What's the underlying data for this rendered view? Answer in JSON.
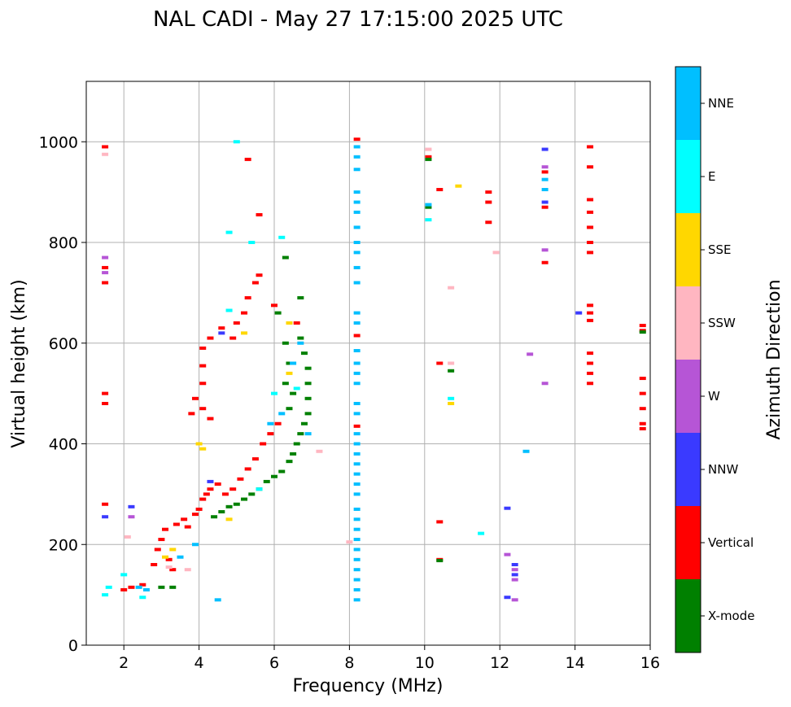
{
  "chart_data": {
    "type": "scatter",
    "title": "NAL CADI - May 27 17:15:00 2025 UTC",
    "xlabel": "Frequency (MHz)",
    "ylabel": "Virtual height (km)",
    "xlim": [
      1,
      16
    ],
    "ylim": [
      0,
      1120
    ],
    "xticks": [
      2,
      4,
      6,
      8,
      10,
      12,
      14,
      16
    ],
    "yticks": [
      0,
      200,
      400,
      600,
      800,
      1000
    ],
    "grid": true,
    "colorbar": {
      "title": "Azimuth Direction",
      "categories": [
        {
          "name": "X-mode",
          "color": "#008000"
        },
        {
          "name": "Vertical",
          "color": "#ff0000"
        },
        {
          "name": "NNW",
          "color": "#3a3aff"
        },
        {
          "name": "W",
          "color": "#b655d6"
        },
        {
          "name": "SSW",
          "color": "#ffb6c1"
        },
        {
          "name": "SSE",
          "color": "#ffd700"
        },
        {
          "name": "E",
          "color": "#00ffff"
        },
        {
          "name": "NNE",
          "color": "#00bfff"
        }
      ]
    },
    "series": [
      {
        "name": "Vertical",
        "color": "#ff0000",
        "points": [
          [
            1.5,
            990
          ],
          [
            1.5,
            750
          ],
          [
            1.5,
            720
          ],
          [
            1.5,
            500
          ],
          [
            1.5,
            480
          ],
          [
            1.5,
            280
          ],
          [
            2.0,
            110
          ],
          [
            2.2,
            115
          ],
          [
            2.5,
            120
          ],
          [
            2.8,
            160
          ],
          [
            2.9,
            190
          ],
          [
            3.0,
            210
          ],
          [
            3.1,
            230
          ],
          [
            3.2,
            170
          ],
          [
            3.3,
            150
          ],
          [
            3.4,
            240
          ],
          [
            3.6,
            250
          ],
          [
            3.7,
            235
          ],
          [
            3.9,
            260
          ],
          [
            4.0,
            270
          ],
          [
            4.1,
            290
          ],
          [
            4.2,
            300
          ],
          [
            4.3,
            310
          ],
          [
            4.5,
            320
          ],
          [
            4.7,
            300
          ],
          [
            4.9,
            310
          ],
          [
            5.1,
            330
          ],
          [
            5.3,
            350
          ],
          [
            5.5,
            370
          ],
          [
            5.7,
            400
          ],
          [
            5.9,
            420
          ],
          [
            6.1,
            440
          ],
          [
            3.8,
            460
          ],
          [
            3.9,
            490
          ],
          [
            4.1,
            470
          ],
          [
            4.3,
            450
          ],
          [
            4.1,
            520
          ],
          [
            4.1,
            555
          ],
          [
            4.1,
            590
          ],
          [
            4.3,
            610
          ],
          [
            4.6,
            630
          ],
          [
            4.9,
            610
          ],
          [
            5.0,
            640
          ],
          [
            5.2,
            660
          ],
          [
            5.3,
            690
          ],
          [
            5.5,
            720
          ],
          [
            5.6,
            735
          ],
          [
            6.0,
            675
          ],
          [
            6.6,
            640
          ],
          [
            5.3,
            965
          ],
          [
            5.6,
            855
          ],
          [
            8.2,
            1005
          ],
          [
            8.2,
            615
          ],
          [
            8.2,
            435
          ],
          [
            10.1,
            970
          ],
          [
            10.4,
            905
          ],
          [
            10.4,
            560
          ],
          [
            10.4,
            245
          ],
          [
            10.4,
            170
          ],
          [
            11.7,
            900
          ],
          [
            11.7,
            880
          ],
          [
            11.7,
            840
          ],
          [
            13.2,
            940
          ],
          [
            13.2,
            870
          ],
          [
            13.2,
            760
          ],
          [
            14.4,
            990
          ],
          [
            14.4,
            950
          ],
          [
            14.4,
            885
          ],
          [
            14.4,
            860
          ],
          [
            14.4,
            830
          ],
          [
            14.4,
            800
          ],
          [
            14.4,
            780
          ],
          [
            14.4,
            675
          ],
          [
            14.4,
            660
          ],
          [
            14.4,
            645
          ],
          [
            14.4,
            580
          ],
          [
            14.4,
            560
          ],
          [
            14.4,
            540
          ],
          [
            14.4,
            520
          ],
          [
            15.8,
            635
          ],
          [
            15.8,
            625
          ],
          [
            15.8,
            530
          ],
          [
            15.8,
            500
          ],
          [
            15.8,
            470
          ],
          [
            15.8,
            440
          ],
          [
            15.8,
            430
          ]
        ]
      },
      {
        "name": "X-mode",
        "color": "#008000",
        "points": [
          [
            3.0,
            115
          ],
          [
            3.3,
            115
          ],
          [
            4.4,
            255
          ],
          [
            4.6,
            265
          ],
          [
            4.8,
            275
          ],
          [
            5.0,
            280
          ],
          [
            5.2,
            290
          ],
          [
            5.4,
            300
          ],
          [
            5.6,
            310
          ],
          [
            5.8,
            325
          ],
          [
            6.0,
            335
          ],
          [
            6.2,
            345
          ],
          [
            6.4,
            365
          ],
          [
            6.5,
            380
          ],
          [
            6.6,
            400
          ],
          [
            6.7,
            420
          ],
          [
            6.8,
            440
          ],
          [
            6.9,
            460
          ],
          [
            6.9,
            490
          ],
          [
            6.9,
            520
          ],
          [
            6.9,
            550
          ],
          [
            6.8,
            580
          ],
          [
            6.7,
            610
          ],
          [
            6.4,
            560
          ],
          [
            6.3,
            600
          ],
          [
            6.3,
            520
          ],
          [
            6.4,
            470
          ],
          [
            6.5,
            500
          ],
          [
            6.7,
            690
          ],
          [
            6.3,
            770
          ],
          [
            6.1,
            660
          ],
          [
            10.1,
            965
          ],
          [
            10.1,
            870
          ],
          [
            10.7,
            545
          ],
          [
            10.4,
            168
          ],
          [
            15.8,
            622
          ]
        ]
      },
      {
        "name": "NNE",
        "color": "#00bfff",
        "points": [
          [
            2.4,
            115
          ],
          [
            2.6,
            110
          ],
          [
            3.5,
            175
          ],
          [
            3.9,
            200
          ],
          [
            4.5,
            90
          ],
          [
            5.9,
            440
          ],
          [
            6.2,
            460
          ],
          [
            6.5,
            560
          ],
          [
            6.7,
            600
          ],
          [
            6.9,
            420
          ],
          [
            8.2,
            990
          ],
          [
            8.2,
            970
          ],
          [
            8.2,
            945
          ],
          [
            8.2,
            900
          ],
          [
            8.2,
            880
          ],
          [
            8.2,
            860
          ],
          [
            8.2,
            830
          ],
          [
            8.2,
            800
          ],
          [
            8.2,
            780
          ],
          [
            8.2,
            750
          ],
          [
            8.2,
            720
          ],
          [
            8.2,
            660
          ],
          [
            8.2,
            640
          ],
          [
            8.2,
            585
          ],
          [
            8.2,
            560
          ],
          [
            8.2,
            540
          ],
          [
            8.2,
            520
          ],
          [
            8.2,
            480
          ],
          [
            8.2,
            460
          ],
          [
            8.2,
            420
          ],
          [
            8.2,
            400
          ],
          [
            8.2,
            380
          ],
          [
            8.2,
            360
          ],
          [
            8.2,
            340
          ],
          [
            8.2,
            320
          ],
          [
            8.2,
            300
          ],
          [
            8.2,
            270
          ],
          [
            8.2,
            250
          ],
          [
            8.2,
            230
          ],
          [
            8.2,
            210
          ],
          [
            8.2,
            190
          ],
          [
            8.2,
            170
          ],
          [
            8.2,
            150
          ],
          [
            8.2,
            130
          ],
          [
            8.2,
            110
          ],
          [
            8.2,
            90
          ],
          [
            10.1,
            875
          ],
          [
            12.7,
            385
          ],
          [
            13.2,
            925
          ],
          [
            13.2,
            905
          ]
        ]
      },
      {
        "name": "E",
        "color": "#00ffff",
        "points": [
          [
            1.5,
            100
          ],
          [
            1.6,
            115
          ],
          [
            2.0,
            140
          ],
          [
            2.5,
            95
          ],
          [
            4.8,
            820
          ],
          [
            4.8,
            665
          ],
          [
            5.0,
            1000
          ],
          [
            5.4,
            800
          ],
          [
            5.6,
            310
          ],
          [
            6.0,
            500
          ],
          [
            6.2,
            810
          ],
          [
            6.6,
            510
          ],
          [
            10.1,
            845
          ],
          [
            10.7,
            490
          ],
          [
            11.5,
            222
          ]
        ]
      },
      {
        "name": "NNW",
        "color": "#3a3aff",
        "points": [
          [
            1.5,
            255
          ],
          [
            2.2,
            275
          ],
          [
            4.3,
            325
          ],
          [
            4.6,
            620
          ],
          [
            12.2,
            272
          ],
          [
            12.2,
            95
          ],
          [
            12.4,
            160
          ],
          [
            12.4,
            140
          ],
          [
            13.2,
            985
          ],
          [
            13.2,
            880
          ],
          [
            14.1,
            660
          ]
        ]
      },
      {
        "name": "W",
        "color": "#b655d6",
        "points": [
          [
            1.5,
            770
          ],
          [
            1.5,
            740
          ],
          [
            2.2,
            255
          ],
          [
            12.2,
            180
          ],
          [
            12.4,
            150
          ],
          [
            12.4,
            130
          ],
          [
            12.4,
            90
          ],
          [
            12.8,
            578
          ],
          [
            13.2,
            950
          ],
          [
            13.2,
            785
          ],
          [
            13.2,
            520
          ]
        ]
      },
      {
        "name": "SSW",
        "color": "#ffb6c1",
        "points": [
          [
            1.5,
            975
          ],
          [
            2.1,
            215
          ],
          [
            3.2,
            155
          ],
          [
            3.7,
            150
          ],
          [
            7.2,
            385
          ],
          [
            8.0,
            205
          ],
          [
            10.1,
            985
          ],
          [
            10.7,
            560
          ],
          [
            11.9,
            780
          ],
          [
            10.7,
            710
          ]
        ]
      },
      {
        "name": "SSE",
        "color": "#ffd700",
        "points": [
          [
            3.1,
            175
          ],
          [
            3.3,
            190
          ],
          [
            4.0,
            400
          ],
          [
            4.1,
            390
          ],
          [
            4.8,
            250
          ],
          [
            5.2,
            620
          ],
          [
            6.4,
            640
          ],
          [
            6.4,
            540
          ],
          [
            10.7,
            480
          ],
          [
            10.9,
            912
          ]
        ]
      }
    ]
  }
}
